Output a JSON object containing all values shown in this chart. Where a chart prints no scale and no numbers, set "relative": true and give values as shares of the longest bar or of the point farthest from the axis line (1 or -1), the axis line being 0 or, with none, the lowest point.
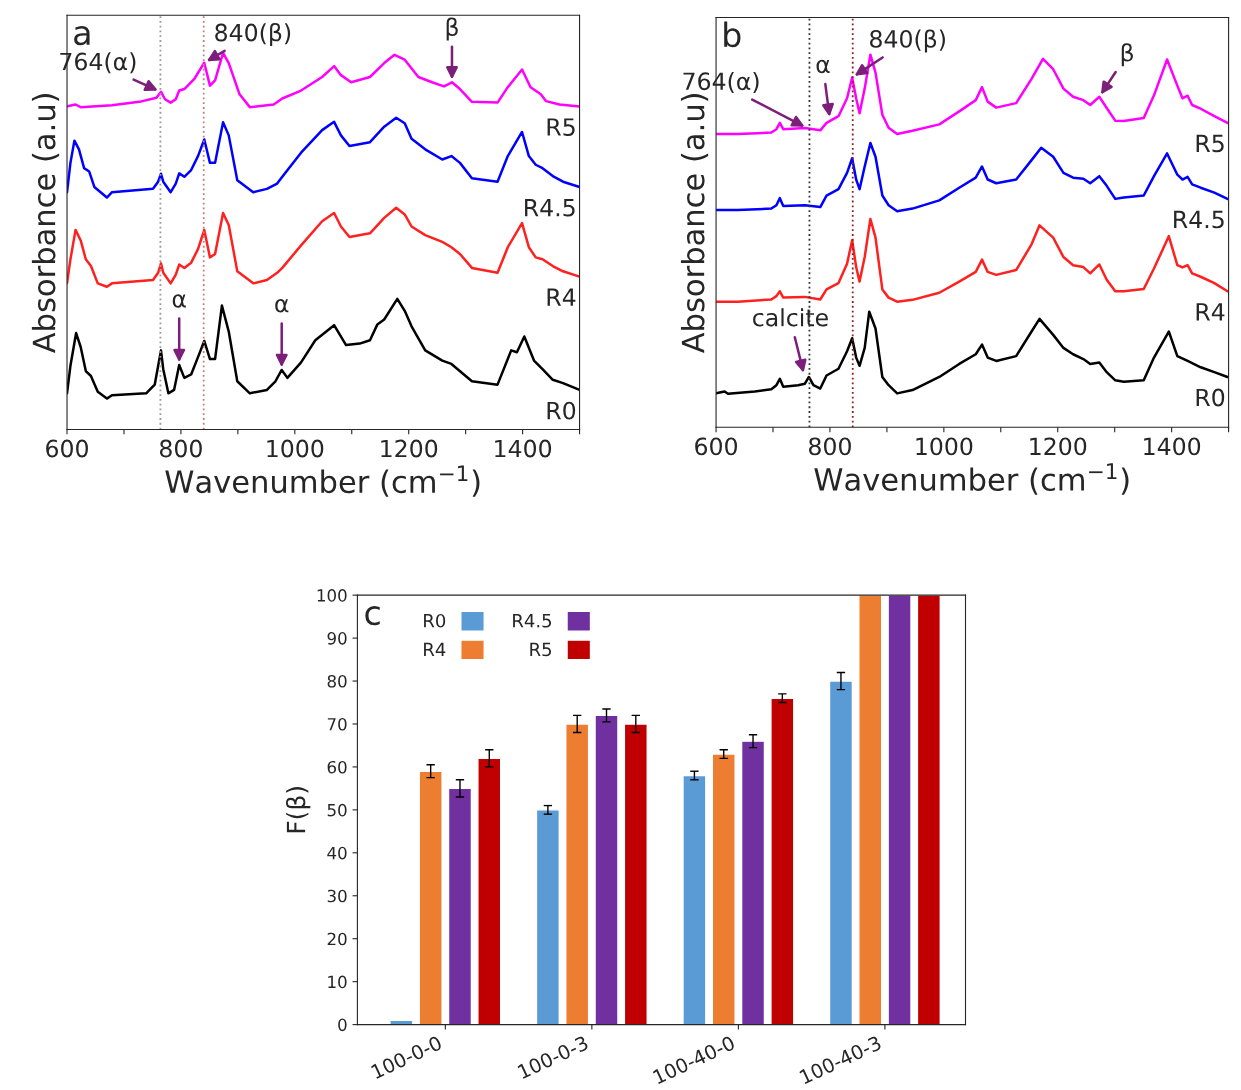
{
  "chart_data": [
    {
      "type": "line",
      "title": "a",
      "xlabel": "Wavenumber (cm$^{−1}$)",
      "ylabel": "Absorbance (a.u)",
      "relative": true,
      "xlim": [
        600,
        1500
      ],
      "xticks": [
        600,
        {
          "value": 700,
          "label": null
        },
        800,
        {
          "value": 900,
          "label": null
        },
        1000,
        {
          "value": 1100,
          "label": null
        },
        1200,
        {
          "value": 1300,
          "label": null
        },
        1400,
        {
          "value": 1500,
          "label": null
        }
      ],
      "line_style": "solid",
      "marker": "none",
      "grid": false,
      "ref_lines": [
        {
          "axis": "x",
          "value": 764,
          "label": null,
          "color": "#999999",
          "line_style": "dotted"
        },
        {
          "axis": "x",
          "value": 840,
          "label": null,
          "color": "#c08080",
          "line_style": "dotted"
        }
      ],
      "annotations": [
        {
          "text": "764(α)",
          "x": 764,
          "y": 0.897
        },
        {
          "text": "840(β)",
          "x": 841,
          "y": 0.974
        },
        {
          "text": "β",
          "x": 1276,
          "y": 0.922
        },
        {
          "text": "α",
          "x": 797,
          "y": 0.171
        },
        {
          "text": "α",
          "x": 977,
          "y": 0.158
        }
      ],
      "series": [
        {
          "name": "R5",
          "color": "#ff00ff",
          "x": [
            600,
            615,
            624,
            679,
            727,
            757,
            765,
            772,
            782,
            791,
            797,
            806,
            824,
            841,
            851,
            860,
            874,
            884,
            903,
            921,
            963,
            978,
            1011,
            1048,
            1069,
            1081,
            1099,
            1132,
            1157,
            1175,
            1193,
            1217,
            1241,
            1262,
            1276,
            1290,
            1311,
            1356,
            1374,
            1399,
            1414,
            1432,
            1441,
            1465,
            1500
          ],
          "values": [
            0.858,
            0.863,
            0.856,
            0.861,
            0.87,
            0.881,
            0.897,
            0.877,
            0.868,
            0.877,
            0.9,
            0.904,
            0.932,
            0.974,
            0.913,
            0.927,
            1.0,
            0.973,
            0.89,
            0.856,
            0.863,
            0.879,
            0.9,
            0.936,
            0.965,
            0.941,
            0.922,
            0.936,
            0.973,
            0.995,
            0.982,
            0.936,
            0.922,
            0.911,
            0.922,
            0.904,
            0.87,
            0.868,
            0.909,
            0.956,
            0.909,
            0.89,
            0.872,
            0.863,
            0.858
          ]
        },
        {
          "name": "R4.5",
          "color": "#0000ff",
          "x": [
            600,
            606,
            613,
            621,
            630,
            639,
            648,
            670,
            679,
            751,
            760,
            765,
            769,
            782,
            791,
            797,
            806,
            818,
            830,
            841,
            851,
            860,
            874,
            884,
            899,
            927,
            951,
            969,
            978,
            1011,
            1048,
            1069,
            1081,
            1096,
            1132,
            1157,
            1178,
            1193,
            1205,
            1229,
            1259,
            1275,
            1290,
            1311,
            1356,
            1374,
            1399,
            1411,
            1423,
            1435,
            1453,
            1471,
            1500
          ],
          "values": [
            0.63,
            0.708,
            0.767,
            0.744,
            0.694,
            0.685,
            0.644,
            0.616,
            0.63,
            0.639,
            0.658,
            0.679,
            0.658,
            0.63,
            0.653,
            0.68,
            0.671,
            0.689,
            0.726,
            0.77,
            0.708,
            0.708,
            0.816,
            0.781,
            0.662,
            0.63,
            0.639,
            0.653,
            0.671,
            0.735,
            0.795,
            0.817,
            0.781,
            0.753,
            0.763,
            0.804,
            0.828,
            0.813,
            0.772,
            0.744,
            0.717,
            0.726,
            0.708,
            0.667,
            0.658,
            0.726,
            0.79,
            0.726,
            0.703,
            0.694,
            0.673,
            0.658,
            0.644
          ]
        },
        {
          "name": "R4",
          "color": "#ff2020",
          "x": [
            600,
            606,
            615,
            624,
            633,
            642,
            654,
            670,
            679,
            751,
            760,
            765,
            769,
            782,
            791,
            797,
            806,
            818,
            830,
            841,
            851,
            860,
            874,
            884,
            899,
            927,
            951,
            969,
            978,
            1011,
            1048,
            1069,
            1081,
            1096,
            1132,
            1157,
            1178,
            1193,
            1205,
            1229,
            1259,
            1275,
            1290,
            1311,
            1356,
            1374,
            1399,
            1411,
            1423,
            1435,
            1453,
            1471,
            1500
          ],
          "values": [
            0.388,
            0.452,
            0.53,
            0.502,
            0.452,
            0.434,
            0.388,
            0.379,
            0.388,
            0.397,
            0.416,
            0.441,
            0.416,
            0.388,
            0.411,
            0.438,
            0.429,
            0.443,
            0.479,
            0.53,
            0.457,
            0.466,
            0.575,
            0.543,
            0.42,
            0.388,
            0.397,
            0.416,
            0.429,
            0.489,
            0.553,
            0.575,
            0.539,
            0.511,
            0.521,
            0.562,
            0.589,
            0.571,
            0.539,
            0.516,
            0.498,
            0.484,
            0.466,
            0.429,
            0.416,
            0.484,
            0.548,
            0.484,
            0.457,
            0.452,
            0.434,
            0.42,
            0.406
          ]
        },
        {
          "name": "R0",
          "color": "#000000",
          "x": [
            600,
            606,
            616,
            624,
            633,
            642,
            654,
            670,
            679,
            739,
            754,
            765,
            769,
            778,
            788,
            797,
            806,
            818,
            830,
            841,
            851,
            860,
            872,
            884,
            899,
            921,
            951,
            966,
            977,
            987,
            1011,
            1036,
            1069,
            1090,
            1114,
            1132,
            1145,
            1157,
            1180,
            1193,
            1205,
            1229,
            1259,
            1275,
            1311,
            1356,
            1380,
            1390,
            1403,
            1420,
            1435,
            1453,
            1471,
            1500
          ],
          "values": [
            0.096,
            0.169,
            0.256,
            0.219,
            0.155,
            0.142,
            0.1,
            0.082,
            0.091,
            0.096,
            0.119,
            0.21,
            0.16,
            0.096,
            0.105,
            0.171,
            0.137,
            0.146,
            0.192,
            0.235,
            0.187,
            0.187,
            0.329,
            0.26,
            0.128,
            0.096,
            0.105,
            0.128,
            0.158,
            0.137,
            0.178,
            0.237,
            0.277,
            0.224,
            0.228,
            0.237,
            0.279,
            0.292,
            0.347,
            0.315,
            0.274,
            0.21,
            0.183,
            0.174,
            0.128,
            0.119,
            0.21,
            0.205,
            0.247,
            0.183,
            0.16,
            0.132,
            0.123,
            0.105
          ]
        }
      ]
    },
    {
      "type": "line",
      "title": "b",
      "xlabel": "Wavenumber (cm$^{−1}$)",
      "ylabel": "Absorbance (a.u)",
      "relative": true,
      "xlim": [
        600,
        1500
      ],
      "xticks": [
        600,
        {
          "value": 700,
          "label": null
        },
        800,
        {
          "value": 900,
          "label": null
        },
        1000,
        {
          "value": 1100,
          "label": null
        },
        1200,
        {
          "value": 1300,
          "label": null
        },
        1400,
        {
          "value": 1500,
          "label": null
        }
      ],
      "line_style": "solid",
      "marker": "none",
      "grid": false,
      "ref_lines": [
        {
          "axis": "x",
          "value": 764,
          "label": null,
          "color": "#333333",
          "line_style": "dotted"
        },
        {
          "axis": "x",
          "value": 840,
          "label": null,
          "color": "#8b2020",
          "line_style": "dotted"
        }
      ],
      "annotations": [
        {
          "text": "764(α)",
          "x": 760,
          "y": 0.803
        },
        {
          "text": "α",
          "x": 800,
          "y": 0.826
        },
        {
          "text": "840(β)",
          "x": 839,
          "y": 0.939
        },
        {
          "text": "β",
          "x": 1273,
          "y": 0.887
        },
        {
          "text": "calcite",
          "x": 755,
          "y": 0.139
        }
      ],
      "series": [
        {
          "name": "R5",
          "color": "#ff00ff",
          "x": [
            600,
            638,
            697,
            706,
            712,
            718,
            756,
            783,
            794,
            815,
            830,
            839,
            846,
            852,
            861,
            871,
            880,
            892,
            903,
            918,
            945,
            992,
            1027,
            1056,
            1067,
            1077,
            1092,
            1127,
            1154,
            1174,
            1192,
            1210,
            1227,
            1245,
            1257,
            1273,
            1286,
            1301,
            1316,
            1351,
            1369,
            1392,
            1410,
            1419,
            1428,
            1436,
            1451,
            1475,
            1498
          ],
          "values": [
            0.787,
            0.787,
            0.791,
            0.8,
            0.817,
            0.8,
            0.803,
            0.797,
            0.817,
            0.835,
            0.883,
            0.939,
            0.883,
            0.843,
            0.909,
            1.0,
            0.952,
            0.839,
            0.804,
            0.787,
            0.796,
            0.813,
            0.848,
            0.878,
            0.913,
            0.874,
            0.858,
            0.87,
            0.935,
            0.989,
            0.961,
            0.909,
            0.887,
            0.878,
            0.865,
            0.887,
            0.857,
            0.823,
            0.822,
            0.83,
            0.891,
            0.987,
            0.917,
            0.883,
            0.89,
            0.865,
            0.855,
            0.835,
            0.817
          ]
        },
        {
          "name": "R4.5",
          "color": "#0000ff",
          "x": [
            600,
            638,
            697,
            706,
            712,
            718,
            756,
            783,
            794,
            815,
            830,
            839,
            846,
            852,
            861,
            871,
            880,
            892,
            903,
            918,
            945,
            992,
            1027,
            1056,
            1067,
            1077,
            1092,
            1127,
            1154,
            1171,
            1192,
            1210,
            1227,
            1245,
            1257,
            1273,
            1286,
            1301,
            1316,
            1351,
            1369,
            1392,
            1410,
            1419,
            1428,
            1436,
            1451,
            1475,
            1498
          ],
          "values": [
            0.583,
            0.583,
            0.587,
            0.596,
            0.615,
            0.594,
            0.596,
            0.591,
            0.622,
            0.639,
            0.683,
            0.722,
            0.665,
            0.639,
            0.7,
            0.763,
            0.726,
            0.622,
            0.596,
            0.58,
            0.587,
            0.609,
            0.643,
            0.67,
            0.7,
            0.665,
            0.655,
            0.665,
            0.717,
            0.75,
            0.726,
            0.683,
            0.67,
            0.667,
            0.655,
            0.674,
            0.648,
            0.613,
            0.617,
            0.622,
            0.674,
            0.735,
            0.678,
            0.665,
            0.672,
            0.652,
            0.643,
            0.63,
            0.613
          ]
        },
        {
          "name": "R4",
          "color": "#ff2020",
          "x": [
            600,
            638,
            697,
            706,
            712,
            718,
            756,
            783,
            794,
            815,
            830,
            839,
            846,
            852,
            861,
            871,
            880,
            892,
            903,
            918,
            945,
            992,
            1027,
            1056,
            1067,
            1077,
            1092,
            1127,
            1154,
            1168,
            1192,
            1210,
            1227,
            1245,
            1257,
            1273,
            1286,
            1301,
            1316,
            1351,
            1369,
            1395,
            1410,
            1419,
            1428,
            1436,
            1451,
            1475,
            1498
          ],
          "values": [
            0.337,
            0.337,
            0.343,
            0.352,
            0.365,
            0.348,
            0.35,
            0.343,
            0.37,
            0.387,
            0.439,
            0.502,
            0.43,
            0.391,
            0.457,
            0.559,
            0.509,
            0.37,
            0.348,
            0.337,
            0.342,
            0.361,
            0.391,
            0.417,
            0.45,
            0.417,
            0.409,
            0.422,
            0.491,
            0.542,
            0.509,
            0.457,
            0.435,
            0.43,
            0.413,
            0.437,
            0.396,
            0.365,
            0.365,
            0.371,
            0.426,
            0.513,
            0.435,
            0.429,
            0.435,
            0.413,
            0.404,
            0.387,
            0.365
          ]
        },
        {
          "name": "R0",
          "color": "#000000",
          "x": [
            600,
            615,
            621,
            668,
            697,
            706,
            712,
            718,
            744,
            756,
            763,
            771,
            783,
            794,
            815,
            830,
            839,
            846,
            852,
            861,
            869,
            880,
            892,
            903,
            918,
            945,
            992,
            1027,
            1056,
            1067,
            1077,
            1092,
            1127,
            1154,
            1168,
            1192,
            1210,
            1227,
            1245,
            1257,
            1273,
            1286,
            1301,
            1316,
            1351,
            1369,
            1395,
            1410,
            1428,
            1451,
            1475,
            1498
          ],
          "values": [
            0.091,
            0.096,
            0.09,
            0.096,
            0.102,
            0.113,
            0.13,
            0.109,
            0.113,
            0.117,
            0.135,
            0.113,
            0.104,
            0.139,
            0.157,
            0.204,
            0.239,
            0.187,
            0.165,
            0.213,
            0.31,
            0.265,
            0.135,
            0.113,
            0.091,
            0.1,
            0.135,
            0.17,
            0.196,
            0.222,
            0.187,
            0.178,
            0.191,
            0.257,
            0.291,
            0.248,
            0.213,
            0.196,
            0.183,
            0.17,
            0.174,
            0.148,
            0.126,
            0.122,
            0.126,
            0.187,
            0.257,
            0.191,
            0.178,
            0.161,
            0.148,
            0.135
          ]
        }
      ]
    },
    {
      "type": "bar",
      "title": "c",
      "ylabel": "F(β)",
      "categories": [
        "100-0-0",
        "100-0-3",
        "100-40-0",
        "100-40-3"
      ],
      "ylim": [
        0,
        100
      ],
      "yticks": [
        0,
        10,
        20,
        30,
        40,
        50,
        60,
        70,
        80,
        90,
        100
      ],
      "grid": false,
      "legend": "top left",
      "series": [
        {
          "name": "R0",
          "color": "#5b9bd5",
          "values": [
            1,
            50,
            58,
            80
          ],
          "errors": [
            null,
            1,
            1,
            2
          ]
        },
        {
          "name": "R4",
          "color": "#ed7d31",
          "values": [
            59,
            70,
            63,
            100
          ],
          "errors": [
            1.5,
            2,
            1,
            null
          ]
        },
        {
          "name": "R4.5",
          "color": "#7030a0",
          "values": [
            55,
            72,
            66,
            100
          ],
          "errors": [
            2,
            1.5,
            1.5,
            null
          ]
        },
        {
          "name": "R5",
          "color": "#c00000",
          "values": [
            62,
            70,
            76,
            100
          ],
          "errors": [
            2,
            2,
            1,
            null
          ]
        }
      ]
    }
  ]
}
